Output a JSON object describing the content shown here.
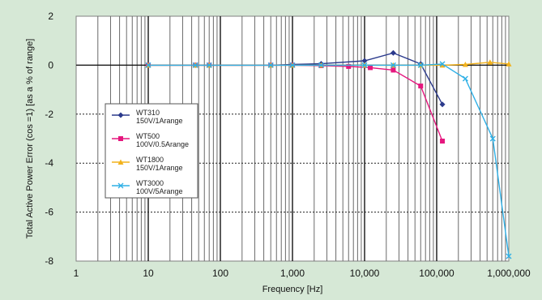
{
  "chart_data": {
    "type": "line",
    "xlabel": "Frequency [Hz]",
    "ylabel": "Total Active Power Error (cos   =1) [as a % of range]",
    "xscale": "log",
    "xlim": [
      1,
      1000000
    ],
    "ylim": [
      -8,
      2
    ],
    "x_tick_labels": [
      "1",
      "10",
      "100",
      "1,000",
      "10,000",
      "100,000",
      "1,000,000"
    ],
    "y_tick_labels": [
      "2",
      "0",
      "-2",
      "-4",
      "-6",
      "-8"
    ],
    "grid": true,
    "legend_position": "left",
    "series": [
      {
        "name": "WT310",
        "sub": "150V/1Arange",
        "color": "#2b3a8c",
        "marker": "diamond",
        "x": [
          10,
          45,
          70,
          500,
          1000,
          2500,
          10000,
          25000,
          60000,
          120000
        ],
        "y": [
          0.0,
          0.0,
          0.0,
          0.0,
          0.03,
          0.06,
          0.18,
          0.5,
          0.05,
          -1.6
        ]
      },
      {
        "name": "WT500",
        "sub": "100V/0.5Arange",
        "color": "#e5177e",
        "marker": "square",
        "x": [
          10,
          45,
          70,
          500,
          1000,
          2500,
          6000,
          12000,
          25000,
          60000,
          120000
        ],
        "y": [
          0.0,
          0.0,
          0.0,
          0.0,
          0.0,
          -0.02,
          -0.05,
          -0.1,
          -0.2,
          -0.85,
          -3.1
        ]
      },
      {
        "name": "WT1800",
        "sub": "150V/1Arange",
        "color": "#f2b21c",
        "marker": "triangle",
        "x": [
          10,
          45,
          70,
          500,
          1000,
          2500,
          10000,
          25000,
          60000,
          120000,
          250000,
          550000,
          1000000
        ],
        "y": [
          0.0,
          0.0,
          0.0,
          0.0,
          0.0,
          0.0,
          0.0,
          0.0,
          0.0,
          0.0,
          0.03,
          0.12,
          0.05
        ]
      },
      {
        "name": "WT3000",
        "sub": "100V/5Arange",
        "color": "#2fb0e6",
        "marker": "x",
        "x": [
          10,
          45,
          70,
          500,
          1000,
          2500,
          10000,
          25000,
          60000,
          120000,
          250000,
          600000,
          1000000
        ],
        "y": [
          0.0,
          0.0,
          0.0,
          0.0,
          0.0,
          0.0,
          0.0,
          0.0,
          0.0,
          0.05,
          -0.55,
          -3.0,
          -7.8
        ]
      }
    ]
  }
}
